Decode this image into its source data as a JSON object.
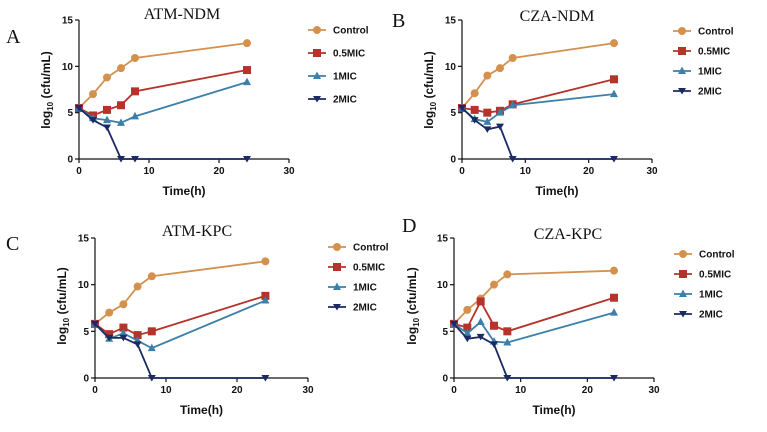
{
  "chart_data": [
    {
      "type": "line",
      "panel": "A",
      "title": "ATM-NDM",
      "xlabel": "Time(h)",
      "ylabel": "log10 (cfu/mL)",
      "xlim": [
        0,
        30
      ],
      "ylim": [
        0,
        15
      ],
      "xticks": [
        0,
        10,
        20,
        30
      ],
      "yticks": [
        0,
        5,
        10,
        15
      ],
      "legend_position": "top-right",
      "series": [
        {
          "name": "Control",
          "color": "#D4914E",
          "marker": "circle",
          "points": [
            [
              0,
              5.5
            ],
            [
              2,
              7.0
            ],
            [
              4,
              8.8
            ],
            [
              6,
              9.8
            ],
            [
              8,
              10.9
            ],
            [
              24,
              12.5
            ]
          ]
        },
        {
          "name": "0.5MIC",
          "color": "#B5332B",
          "marker": "square",
          "points": [
            [
              0,
              5.5
            ],
            [
              2,
              4.7
            ],
            [
              4,
              5.3
            ],
            [
              6,
              5.8
            ],
            [
              8,
              7.3
            ],
            [
              24,
              9.6
            ]
          ]
        },
        {
          "name": "1MIC",
          "color": "#3C7FA8",
          "marker": "triangle-up",
          "points": [
            [
              0,
              5.5
            ],
            [
              2,
              4.4
            ],
            [
              4,
              4.2
            ],
            [
              6,
              3.9
            ],
            [
              8,
              4.6
            ],
            [
              24,
              8.3
            ]
          ]
        },
        {
          "name": "2MIC",
          "color": "#1B2A63",
          "marker": "triangle-down",
          "points": [
            [
              0,
              5.5
            ],
            [
              2,
              4.2
            ],
            [
              4,
              3.4
            ],
            [
              6,
              0
            ],
            [
              8,
              0
            ],
            [
              24,
              0
            ]
          ]
        }
      ]
    },
    {
      "type": "line",
      "panel": "B",
      "title": "CZA-NDM",
      "xlabel": "Time(h)",
      "ylabel": "log10 (cfu/mL)",
      "xlim": [
        0,
        30
      ],
      "ylim": [
        0,
        15
      ],
      "xticks": [
        0,
        10,
        20,
        30
      ],
      "yticks": [
        0,
        5,
        10,
        15
      ],
      "legend_position": "top-right",
      "series": [
        {
          "name": "Control",
          "color": "#D4914E",
          "marker": "circle",
          "points": [
            [
              0,
              5.5
            ],
            [
              2,
              7.1
            ],
            [
              4,
              9.0
            ],
            [
              6,
              9.8
            ],
            [
              8,
              10.9
            ],
            [
              24,
              12.5
            ]
          ]
        },
        {
          "name": "0.5MIC",
          "color": "#B5332B",
          "marker": "square",
          "points": [
            [
              0,
              5.5
            ],
            [
              2,
              5.3
            ],
            [
              4,
              5.0
            ],
            [
              6,
              5.2
            ],
            [
              8,
              5.9
            ],
            [
              24,
              8.6
            ]
          ]
        },
        {
          "name": "1MIC",
          "color": "#3C7FA8",
          "marker": "triangle-up",
          "points": [
            [
              0,
              5.5
            ],
            [
              2,
              4.3
            ],
            [
              4,
              4.0
            ],
            [
              6,
              5.0
            ],
            [
              8,
              5.8
            ],
            [
              24,
              7.0
            ]
          ]
        },
        {
          "name": "2MIC",
          "color": "#1B2A63",
          "marker": "triangle-down",
          "points": [
            [
              0,
              5.5
            ],
            [
              2,
              4.2
            ],
            [
              4,
              3.2
            ],
            [
              6,
              3.5
            ],
            [
              8,
              0
            ],
            [
              24,
              0
            ]
          ]
        }
      ]
    },
    {
      "type": "line",
      "panel": "C",
      "title": "ATM-KPC",
      "xlabel": "Time(h)",
      "ylabel": "log10 (cfu/mL)",
      "xlim": [
        0,
        30
      ],
      "ylim": [
        0,
        15
      ],
      "xticks": [
        0,
        10,
        20,
        30
      ],
      "yticks": [
        0,
        5,
        10,
        15
      ],
      "legend_position": "top-right",
      "series": [
        {
          "name": "Control",
          "color": "#D4914E",
          "marker": "circle",
          "points": [
            [
              0,
              5.8
            ],
            [
              2,
              7.0
            ],
            [
              4,
              7.9
            ],
            [
              6,
              9.8
            ],
            [
              8,
              10.9
            ],
            [
              24,
              12.5
            ]
          ]
        },
        {
          "name": "0.5MIC",
          "color": "#B5332B",
          "marker": "square",
          "points": [
            [
              0,
              5.8
            ],
            [
              2,
              4.7
            ],
            [
              4,
              5.4
            ],
            [
              6,
              4.6
            ],
            [
              8,
              5.0
            ],
            [
              24,
              8.8
            ]
          ]
        },
        {
          "name": "1MIC",
          "color": "#3C7FA8",
          "marker": "triangle-up",
          "points": [
            [
              0,
              5.8
            ],
            [
              2,
              4.2
            ],
            [
              4,
              4.8
            ],
            [
              6,
              4.0
            ],
            [
              8,
              3.2
            ],
            [
              24,
              8.3
            ]
          ]
        },
        {
          "name": "2MIC",
          "color": "#1B2A63",
          "marker": "triangle-down",
          "points": [
            [
              0,
              5.8
            ],
            [
              2,
              4.3
            ],
            [
              4,
              4.3
            ],
            [
              6,
              3.6
            ],
            [
              8,
              0
            ],
            [
              24,
              0
            ]
          ]
        }
      ]
    },
    {
      "type": "line",
      "panel": "D",
      "title": "CZA-KPC",
      "xlabel": "Time(h)",
      "ylabel": "log10 (cfu/mL)",
      "xlim": [
        0,
        30
      ],
      "ylim": [
        0,
        15
      ],
      "xticks": [
        0,
        10,
        20,
        30
      ],
      "yticks": [
        0,
        5,
        10,
        15
      ],
      "legend_position": "right",
      "series": [
        {
          "name": "Control",
          "color": "#D4914E",
          "marker": "circle",
          "points": [
            [
              0,
              5.8
            ],
            [
              2,
              7.3
            ],
            [
              4,
              8.5
            ],
            [
              6,
              10.0
            ],
            [
              8,
              11.1
            ],
            [
              24,
              11.5
            ]
          ]
        },
        {
          "name": "0.5MIC",
          "color": "#B5332B",
          "marker": "square",
          "points": [
            [
              0,
              5.8
            ],
            [
              2,
              5.4
            ],
            [
              4,
              8.2
            ],
            [
              6,
              5.6
            ],
            [
              8,
              5.0
            ],
            [
              24,
              8.6
            ]
          ]
        },
        {
          "name": "1MIC",
          "color": "#3C7FA8",
          "marker": "triangle-up",
          "points": [
            [
              0,
              5.8
            ],
            [
              2,
              4.8
            ],
            [
              4,
              6.0
            ],
            [
              6,
              3.9
            ],
            [
              8,
              3.8
            ],
            [
              24,
              7.0
            ]
          ]
        },
        {
          "name": "2MIC",
          "color": "#1B2A63",
          "marker": "triangle-down",
          "points": [
            [
              0,
              5.8
            ],
            [
              2,
              4.2
            ],
            [
              4,
              4.4
            ],
            [
              6,
              3.6
            ],
            [
              8,
              0
            ],
            [
              24,
              0
            ]
          ]
        }
      ]
    }
  ]
}
